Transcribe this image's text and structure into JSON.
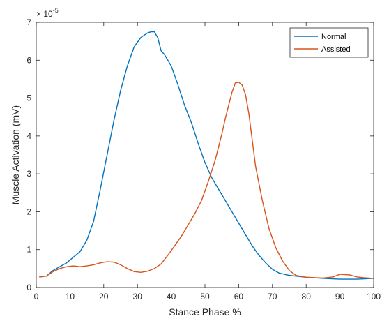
{
  "chart_data": {
    "type": "line",
    "title": "",
    "xlabel": "Stance Phase %",
    "ylabel": "Muscle Activation (mV)",
    "y_exponent_label": "× 10",
    "y_exponent_power": "-5",
    "xlim": [
      0,
      100
    ],
    "ylim": [
      0,
      7
    ],
    "x_ticks": [
      0,
      10,
      20,
      30,
      40,
      50,
      60,
      70,
      80,
      90,
      100
    ],
    "y_ticks": [
      0,
      1,
      2,
      3,
      4,
      5,
      6,
      7
    ],
    "grid": false,
    "legend_placement": "top-right",
    "series": [
      {
        "name": "Normal",
        "color": "#0072BD",
        "x": [
          1,
          3,
          5,
          7,
          9,
          11,
          13,
          15,
          17,
          19,
          21,
          23,
          25,
          27,
          29,
          31,
          33,
          34,
          35,
          36,
          37,
          38,
          40,
          42,
          44,
          46,
          48,
          50,
          52,
          54,
          56,
          58,
          60,
          62,
          64,
          66,
          68,
          70,
          72,
          75,
          80,
          85,
          90,
          95,
          100
        ],
        "values": [
          0.28,
          0.3,
          0.45,
          0.55,
          0.65,
          0.8,
          0.95,
          1.25,
          1.75,
          2.6,
          3.5,
          4.4,
          5.2,
          5.85,
          6.35,
          6.6,
          6.72,
          6.75,
          6.75,
          6.6,
          6.25,
          6.15,
          5.85,
          5.35,
          4.8,
          4.35,
          3.8,
          3.3,
          2.9,
          2.6,
          2.3,
          2.0,
          1.7,
          1.4,
          1.1,
          0.85,
          0.65,
          0.48,
          0.38,
          0.32,
          0.27,
          0.24,
          0.22,
          0.22,
          0.24
        ]
      },
      {
        "name": "Assisted",
        "color": "#D95319",
        "x": [
          1,
          3,
          5,
          7,
          9,
          11,
          13,
          15,
          17,
          19,
          21,
          23,
          25,
          27,
          29,
          31,
          33,
          35,
          37,
          39,
          41,
          43,
          45,
          47,
          49,
          51,
          53,
          55,
          56,
          57,
          58,
          59,
          60,
          61,
          62,
          63,
          64,
          65,
          67,
          69,
          71,
          73,
          75,
          77,
          80,
          85,
          88,
          90,
          93,
          95,
          97,
          100
        ],
        "values": [
          0.28,
          0.3,
          0.42,
          0.5,
          0.55,
          0.57,
          0.55,
          0.57,
          0.6,
          0.65,
          0.68,
          0.67,
          0.6,
          0.5,
          0.42,
          0.4,
          0.43,
          0.5,
          0.62,
          0.85,
          1.1,
          1.35,
          1.65,
          1.95,
          2.3,
          2.8,
          3.35,
          4.05,
          4.45,
          4.8,
          5.15,
          5.4,
          5.42,
          5.35,
          5.1,
          4.6,
          3.9,
          3.2,
          2.3,
          1.55,
          1.05,
          0.7,
          0.45,
          0.32,
          0.27,
          0.25,
          0.28,
          0.35,
          0.33,
          0.28,
          0.26,
          0.24
        ]
      }
    ]
  }
}
